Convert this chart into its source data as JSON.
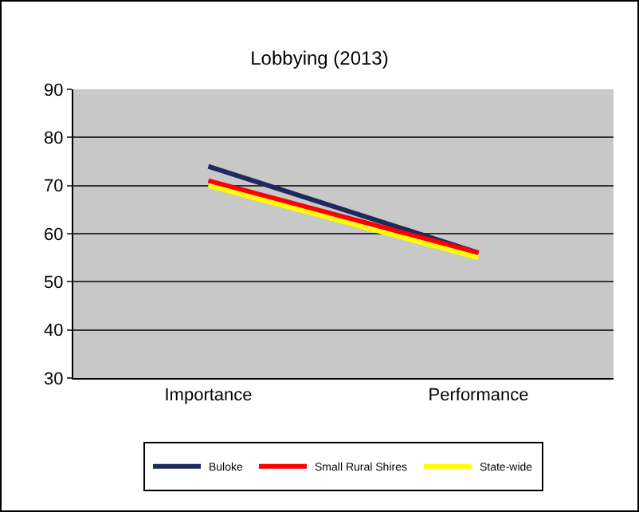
{
  "chart_data": {
    "type": "line",
    "title": "Lobbying (2013)",
    "categories": [
      "Importance",
      "Performance"
    ],
    "series": [
      {
        "name": "Buloke",
        "color": "#1f2a5c",
        "values": [
          74,
          56
        ]
      },
      {
        "name": "Small Rural Shires",
        "color": "#ff0000",
        "values": [
          71,
          56
        ]
      },
      {
        "name": "State-wide",
        "color": "#ffff00",
        "values": [
          70,
          55
        ]
      }
    ],
    "ylim": [
      30,
      90
    ],
    "yticks": [
      30,
      40,
      50,
      60,
      70,
      80,
      90
    ],
    "grid": "y",
    "legend": "bottom",
    "marker": "none",
    "line_style": "solid"
  }
}
